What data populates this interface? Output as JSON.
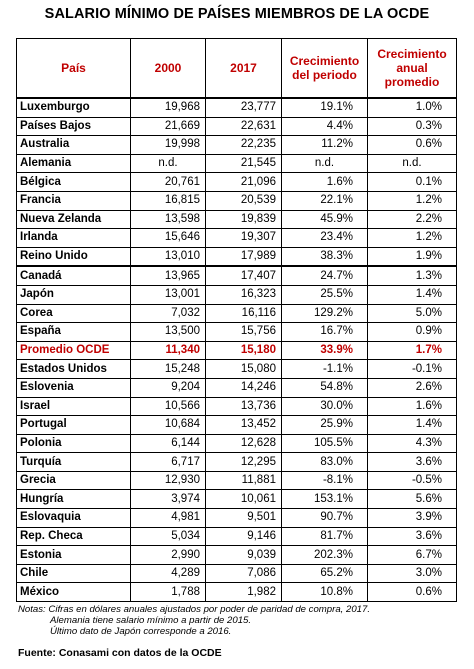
{
  "title": "SALARIO MÍNIMO  DE PAÍSES MIEMBROS DE LA OCDE",
  "chart_data": {
    "type": "table",
    "columns": [
      "País",
      "2000",
      "2017",
      "Crecimiento del periodo",
      "Crecimiento anual promedio"
    ],
    "rows": [
      [
        "Luxemburgo",
        "19,968",
        "23,777",
        "19.1%",
        "1.0%"
      ],
      [
        "Países Bajos",
        "21,669",
        "22,631",
        "4.4%",
        "0.3%"
      ],
      [
        "Australia",
        "19,998",
        "22,235",
        "11.2%",
        "0.6%"
      ],
      [
        "Alemania",
        "n.d.",
        "21,545",
        "n.d.",
        "n.d."
      ],
      [
        "Bélgica",
        "20,761",
        "21,096",
        "1.6%",
        "0.1%"
      ],
      [
        "Francia",
        "16,815",
        "20,539",
        "22.1%",
        "1.2%"
      ],
      [
        "Nueva Zelanda",
        "13,598",
        "19,839",
        "45.9%",
        "2.2%"
      ],
      [
        "Irlanda",
        "15,646",
        "19,307",
        "23.4%",
        "1.2%"
      ],
      [
        "Reino Unido",
        "13,010",
        "17,989",
        "38.3%",
        "1.9%"
      ],
      [
        "Canadá",
        "13,965",
        "17,407",
        "24.7%",
        "1.3%"
      ],
      [
        "Japón",
        "13,001",
        "16,323",
        "25.5%",
        "1.4%"
      ],
      [
        "Corea",
        "7,032",
        "16,116",
        "129.2%",
        "5.0%"
      ],
      [
        "España",
        "13,500",
        "15,756",
        "16.7%",
        "0.9%"
      ],
      [
        "Promedio OCDE",
        "11,340",
        "15,180",
        "33.9%",
        "1.7%"
      ],
      [
        "Estados Unidos",
        "15,248",
        "15,080",
        "-1.1%",
        "-0.1%"
      ],
      [
        "Eslovenia",
        "9,204",
        "14,246",
        "54.8%",
        "2.6%"
      ],
      [
        "Israel",
        "10,566",
        "13,736",
        "30.0%",
        "1.6%"
      ],
      [
        "Portugal",
        "10,684",
        "13,452",
        "25.9%",
        "1.4%"
      ],
      [
        "Polonia",
        "6,144",
        "12,628",
        "105.5%",
        "4.3%"
      ],
      [
        "Turquía",
        "6,717",
        "12,295",
        "83.0%",
        "3.6%"
      ],
      [
        "Grecia",
        "12,930",
        "11,881",
        "-8.1%",
        "-0.5%"
      ],
      [
        "Hungría",
        "3,974",
        "10,061",
        "153.1%",
        "5.6%"
      ],
      [
        "Eslovaquia",
        "4,981",
        "9,501",
        "90.7%",
        "3.9%"
      ],
      [
        "Rep. Checa",
        "5,034",
        "9,146",
        "81.7%",
        "3.6%"
      ],
      [
        "Estonia",
        "2,990",
        "9,039",
        "202.3%",
        "6.7%"
      ],
      [
        "Chile",
        "4,289",
        "7,086",
        "65.2%",
        "3.0%"
      ],
      [
        "México",
        "1,788",
        "1,982",
        "10.8%",
        "0.6%"
      ]
    ],
    "highlight_row": "Promedio OCDE",
    "highlight_color": "#c00000"
  },
  "notes": [
    "Notas: Cifras en dólares anuales ajustados por poder de paridad de compra, 2017.",
    "Alemania tiene salario mínimo a partir de 2015.",
    "Último dato de Japón corresponde  a 2016."
  ],
  "source": "Fuente: Conasami  con datos de la OCDE"
}
